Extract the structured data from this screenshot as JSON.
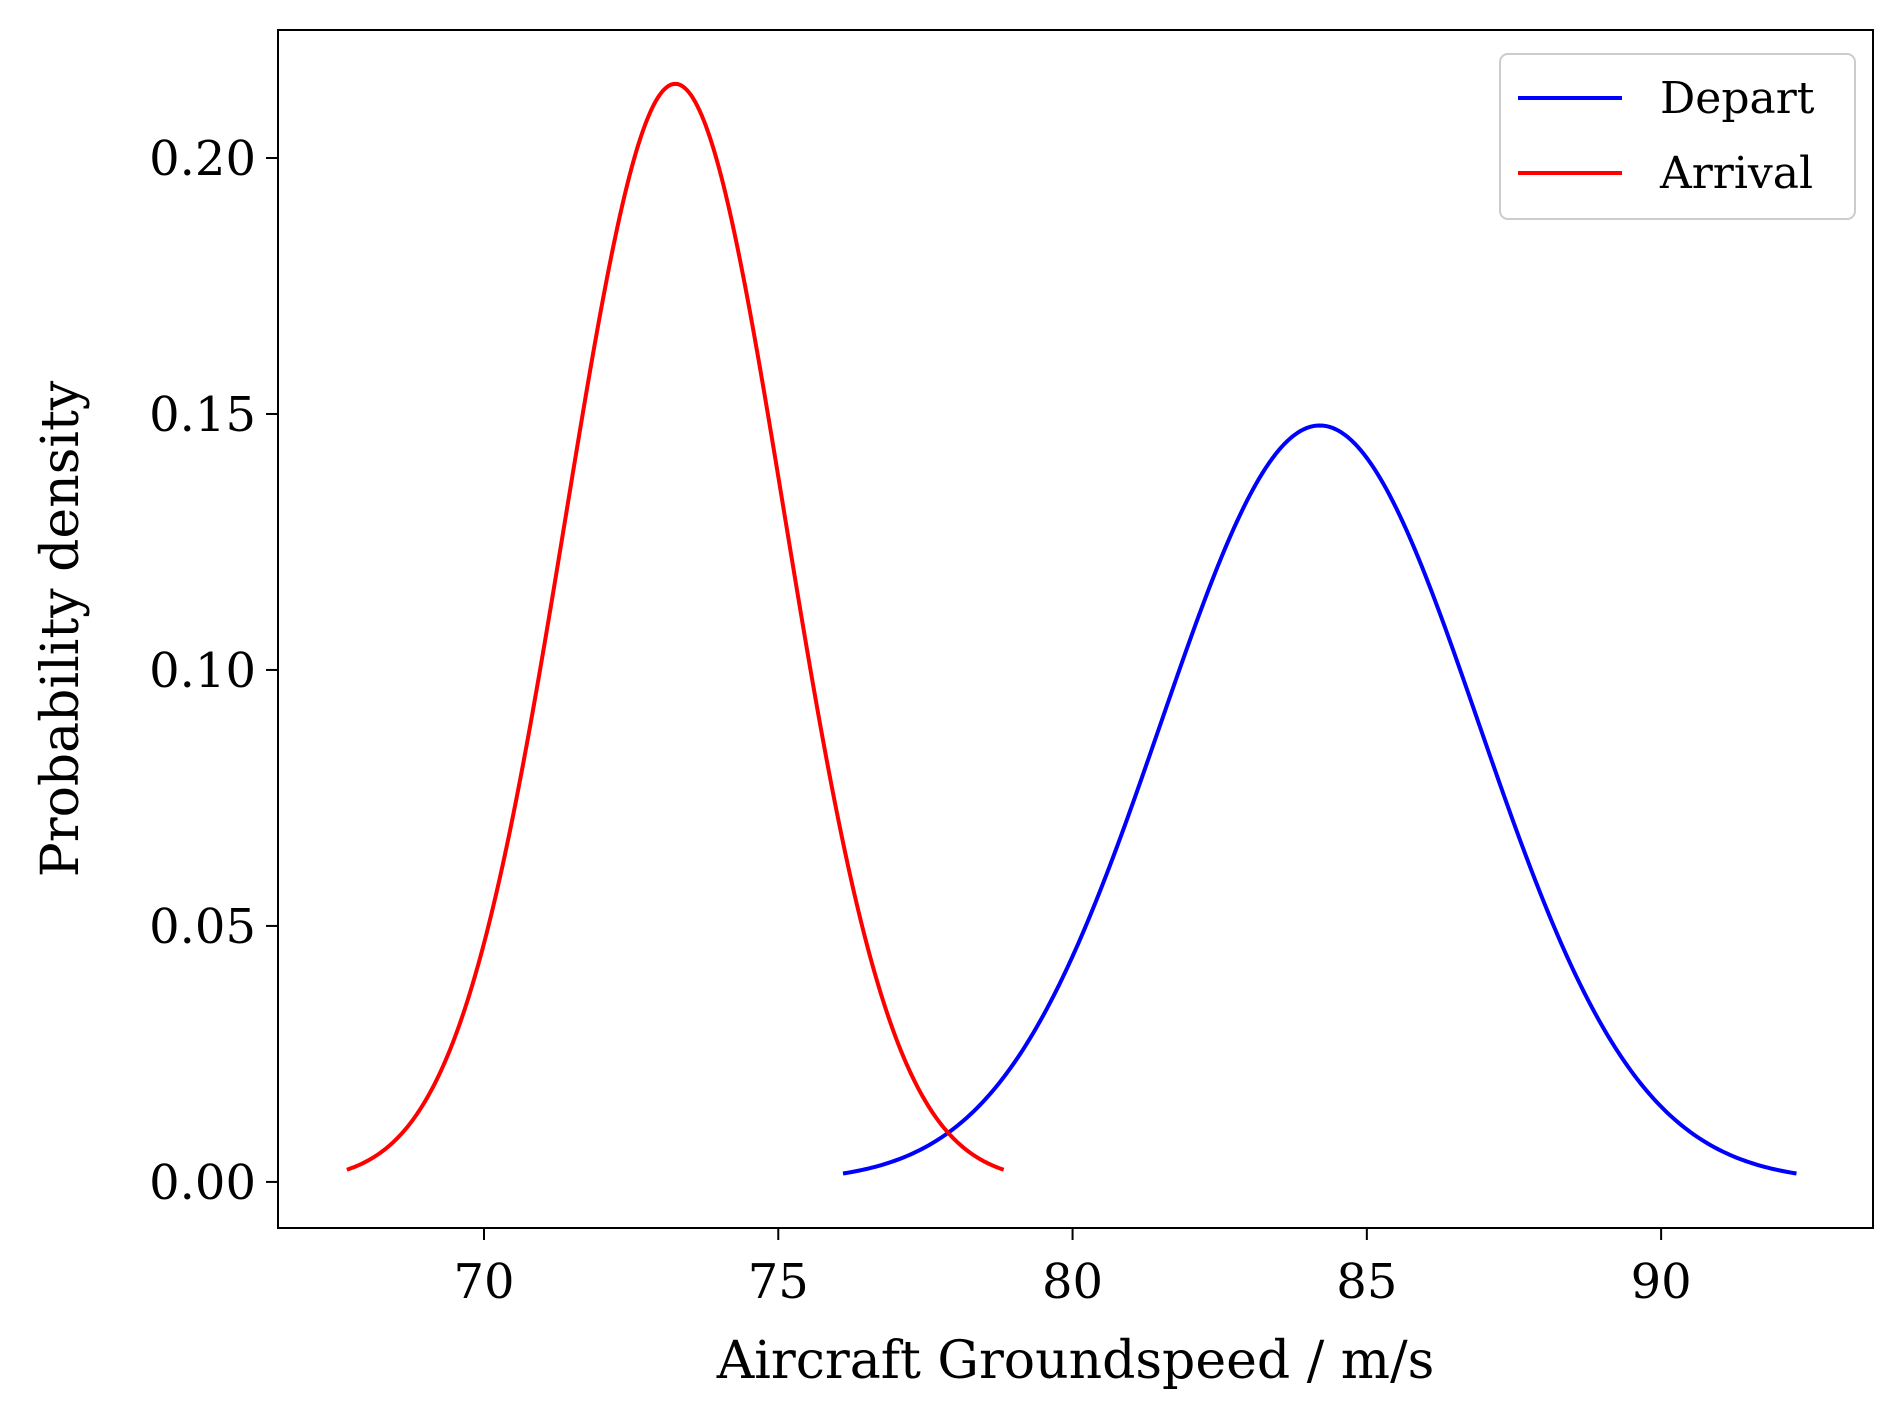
{
  "chart_data": {
    "type": "line",
    "title": "",
    "xlabel": "Aircraft Groundspeed / m/s",
    "ylabel": "Probability density",
    "xlim": [
      66.5,
      93.6
    ],
    "ylim": [
      -0.009,
      0.225
    ],
    "xticks": [
      70,
      75,
      80,
      85,
      90
    ],
    "xtick_labels": [
      "70",
      "75",
      "80",
      "85",
      "90"
    ],
    "yticks": [
      0.0,
      0.05,
      0.1,
      0.15,
      0.2
    ],
    "ytick_labels": [
      "0.00",
      "0.05",
      "0.10",
      "0.15",
      "0.20"
    ],
    "grid": false,
    "legend_position": "top-right",
    "series": [
      {
        "name": "Depart",
        "color": "#0000ff",
        "distribution": "normal",
        "mean": 84.2,
        "std": 2.7,
        "x_range": [
          76.1,
          92.3
        ]
      },
      {
        "name": "Arrival",
        "color": "#ff0000",
        "distribution": "normal",
        "mean": 73.25,
        "std": 1.86,
        "x_range": [
          67.67,
          78.83
        ]
      }
    ]
  }
}
